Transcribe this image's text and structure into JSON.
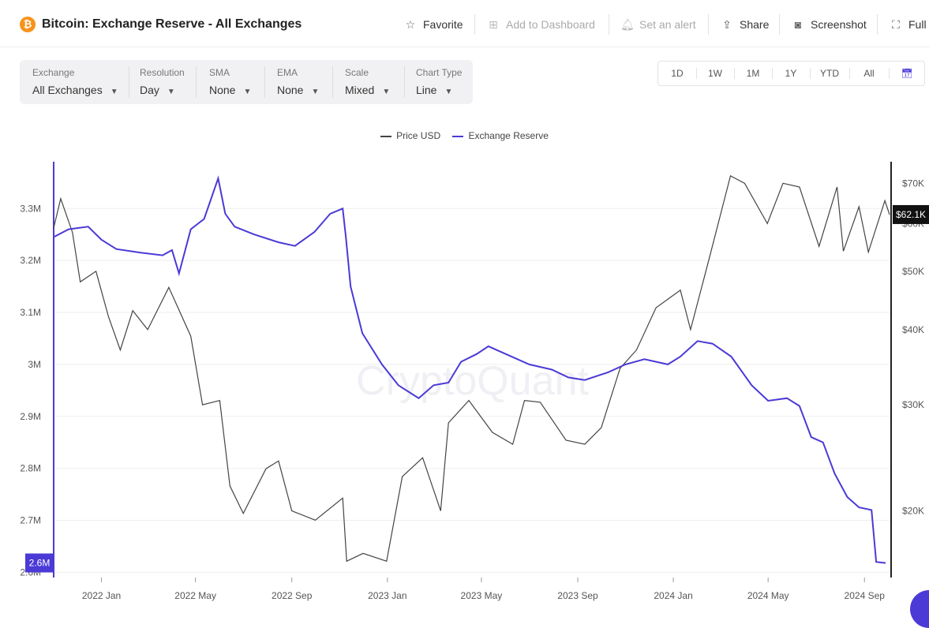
{
  "header": {
    "logo_symbol": "₿",
    "title": "Bitcoin: Exchange Reserve - All Exchanges",
    "actions": [
      {
        "label": "Favorite",
        "icon": "☆",
        "disabled": false
      },
      {
        "label": "Add to Dashboard",
        "icon": "⊞",
        "disabled": true
      },
      {
        "label": "Set an alert",
        "icon": "🔔︎",
        "disabled": true
      },
      {
        "label": "Share",
        "icon": "⇪",
        "disabled": false
      },
      {
        "label": "Screenshot",
        "icon": "◙",
        "disabled": false
      },
      {
        "label": "Full",
        "icon": "⛶",
        "disabled": false
      }
    ]
  },
  "toolbar": {
    "controls": [
      {
        "label": "Exchange",
        "value": "All Exchanges"
      },
      {
        "label": "Resolution",
        "value": "Day"
      },
      {
        "label": "SMA",
        "value": "None"
      },
      {
        "label": "EMA",
        "value": "None"
      },
      {
        "label": "Scale",
        "value": "Mixed"
      },
      {
        "label": "Chart Type",
        "value": "Line"
      }
    ]
  },
  "range_buttons": [
    "1D",
    "1W",
    "1M",
    "1Y",
    "YTD",
    "All"
  ],
  "calendar_icon": "📅︎",
  "colors": {
    "price": "#444444",
    "reserve": "#4b3ad6",
    "accent": "#4b3ad6",
    "bitcoin": "#f7931a"
  },
  "watermark": "CryptoQuant",
  "chart_data": {
    "type": "line",
    "legend": [
      "Price USD",
      "Exchange Reserve"
    ],
    "x_ticks": [
      "2022 Jan",
      "2022 May",
      "2022 Sep",
      "2023 Jan",
      "2023 May",
      "2023 Sep",
      "2024 Jan",
      "2024 May",
      "2024 Sep"
    ],
    "x_range": [
      "2021-11-01",
      "2024-10-05"
    ],
    "y_left": {
      "ticks": [
        2600000,
        2700000,
        2800000,
        2900000,
        3000000,
        3100000,
        3200000,
        3300000
      ],
      "labels": [
        "2.6M",
        "2.7M",
        "2.8M",
        "2.9M",
        "3M",
        "3.1M",
        "3.2M",
        "3.3M"
      ],
      "range": [
        2590000,
        3390000
      ],
      "current_label": "2.6M"
    },
    "y_right": {
      "scale": "log",
      "ticks": [
        20000,
        30000,
        40000,
        50000,
        60000,
        70000
      ],
      "labels": [
        "$20K",
        "$30K",
        "$40K",
        "$50K",
        "$60K",
        "$70K"
      ],
      "range": [
        15500,
        76000
      ],
      "current_label": "$62.1K"
    },
    "series": [
      {
        "name": "Price USD",
        "axis": "right",
        "points": [
          [
            "2021-11-01",
            59000
          ],
          [
            "2021-11-10",
            66000
          ],
          [
            "2021-11-25",
            58000
          ],
          [
            "2021-12-05",
            48000
          ],
          [
            "2021-12-25",
            50000
          ],
          [
            "2022-01-10",
            42000
          ],
          [
            "2022-01-25",
            37000
          ],
          [
            "2022-02-10",
            43000
          ],
          [
            "2022-03-01",
            40000
          ],
          [
            "2022-03-28",
            47000
          ],
          [
            "2022-04-25",
            39000
          ],
          [
            "2022-05-10",
            30000
          ],
          [
            "2022-06-01",
            30500
          ],
          [
            "2022-06-14",
            22000
          ],
          [
            "2022-07-01",
            19800
          ],
          [
            "2022-07-30",
            23500
          ],
          [
            "2022-08-15",
            24200
          ],
          [
            "2022-09-01",
            20000
          ],
          [
            "2022-10-01",
            19300
          ],
          [
            "2022-11-05",
            21000
          ],
          [
            "2022-11-10",
            16500
          ],
          [
            "2022-12-01",
            17000
          ],
          [
            "2022-12-31",
            16500
          ],
          [
            "2023-01-20",
            22800
          ],
          [
            "2023-02-15",
            24500
          ],
          [
            "2023-03-10",
            20000
          ],
          [
            "2023-03-20",
            28000
          ],
          [
            "2023-04-15",
            30500
          ],
          [
            "2023-05-15",
            27000
          ],
          [
            "2023-06-10",
            25800
          ],
          [
            "2023-06-25",
            30500
          ],
          [
            "2023-07-15",
            30300
          ],
          [
            "2023-08-17",
            26200
          ],
          [
            "2023-09-10",
            25800
          ],
          [
            "2023-10-01",
            27500
          ],
          [
            "2023-10-25",
            34500
          ],
          [
            "2023-11-15",
            37000
          ],
          [
            "2023-12-10",
            43500
          ],
          [
            "2024-01-10",
            46500
          ],
          [
            "2024-01-23",
            40000
          ],
          [
            "2024-02-15",
            52000
          ],
          [
            "2024-03-14",
            72000
          ],
          [
            "2024-04-01",
            70000
          ],
          [
            "2024-04-30",
            60000
          ],
          [
            "2024-05-20",
            70000
          ],
          [
            "2024-06-10",
            69000
          ],
          [
            "2024-07-05",
            55000
          ],
          [
            "2024-07-28",
            69000
          ],
          [
            "2024-08-05",
            54000
          ],
          [
            "2024-08-25",
            64000
          ],
          [
            "2024-09-06",
            53800
          ],
          [
            "2024-09-27",
            65500
          ],
          [
            "2024-10-03",
            62100
          ]
        ]
      },
      {
        "name": "Exchange Reserve",
        "axis": "left",
        "points": [
          [
            "2021-11-01",
            3245000
          ],
          [
            "2021-11-20",
            3260000
          ],
          [
            "2021-12-15",
            3265000
          ],
          [
            "2022-01-01",
            3240000
          ],
          [
            "2022-01-20",
            3222000
          ],
          [
            "2022-02-20",
            3215000
          ],
          [
            "2022-03-20",
            3210000
          ],
          [
            "2022-04-01",
            3220000
          ],
          [
            "2022-04-10",
            3175000
          ],
          [
            "2022-04-25",
            3260000
          ],
          [
            "2022-05-12",
            3280000
          ],
          [
            "2022-05-30",
            3358000
          ],
          [
            "2022-06-08",
            3290000
          ],
          [
            "2022-06-20",
            3265000
          ],
          [
            "2022-07-15",
            3250000
          ],
          [
            "2022-08-15",
            3235000
          ],
          [
            "2022-09-05",
            3228000
          ],
          [
            "2022-09-30",
            3255000
          ],
          [
            "2022-10-20",
            3290000
          ],
          [
            "2022-11-05",
            3300000
          ],
          [
            "2022-11-09",
            3245000
          ],
          [
            "2022-11-15",
            3150000
          ],
          [
            "2022-11-30",
            3060000
          ],
          [
            "2022-12-25",
            3000000
          ],
          [
            "2023-01-15",
            2960000
          ],
          [
            "2023-02-10",
            2935000
          ],
          [
            "2023-03-01",
            2960000
          ],
          [
            "2023-03-20",
            2965000
          ],
          [
            "2023-04-05",
            3005000
          ],
          [
            "2023-04-25",
            3020000
          ],
          [
            "2023-05-10",
            3035000
          ],
          [
            "2023-06-01",
            3020000
          ],
          [
            "2023-07-01",
            3000000
          ],
          [
            "2023-07-30",
            2990000
          ],
          [
            "2023-08-20",
            2975000
          ],
          [
            "2023-09-10",
            2970000
          ],
          [
            "2023-10-10",
            2985000
          ],
          [
            "2023-11-01",
            3000000
          ],
          [
            "2023-11-25",
            3010000
          ],
          [
            "2023-12-25",
            3000000
          ],
          [
            "2024-01-10",
            3015000
          ],
          [
            "2024-02-01",
            3045000
          ],
          [
            "2024-02-20",
            3040000
          ],
          [
            "2024-03-15",
            3015000
          ],
          [
            "2024-04-10",
            2960000
          ],
          [
            "2024-05-01",
            2930000
          ],
          [
            "2024-05-25",
            2935000
          ],
          [
            "2024-06-10",
            2920000
          ],
          [
            "2024-06-25",
            2860000
          ],
          [
            "2024-07-10",
            2850000
          ],
          [
            "2024-07-25",
            2790000
          ],
          [
            "2024-08-10",
            2745000
          ],
          [
            "2024-08-25",
            2725000
          ],
          [
            "2024-09-10",
            2720000
          ],
          [
            "2024-09-16",
            2620000
          ],
          [
            "2024-09-28",
            2618000
          ]
        ]
      }
    ]
  }
}
